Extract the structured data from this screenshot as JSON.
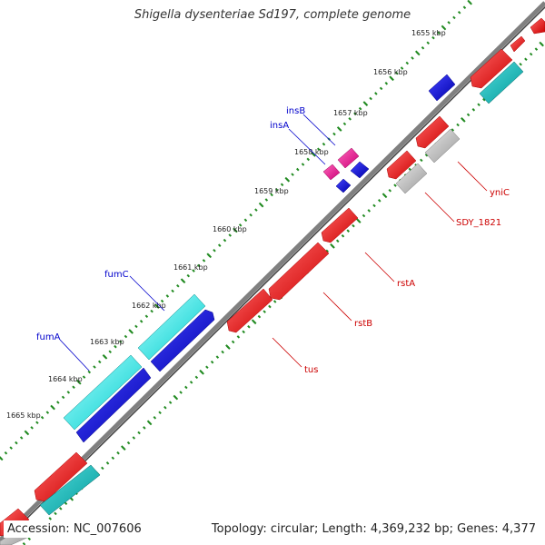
{
  "title": "Shigella dysenteriae Sd197, complete genome",
  "footer": {
    "accession": "Accession: NC_007606",
    "summary": "Topology: circular; Length: 4,369,232 bp; Genes: 4,377"
  },
  "colors": {
    "forward_red": "#ff0000",
    "forward_cyan": "#00ffff",
    "reverse_blue": "#0000ff",
    "reverse_red": "#ff0000",
    "reverse_cyan": "#00cccc",
    "gray": "#bbbbbb",
    "magenta": "#ff1493",
    "backbone": "#808080",
    "tick": "#228b22",
    "label_forward": "#0000cc",
    "label_reverse": "#cc0000"
  },
  "scale_labels": [
    "1655 kbp",
    "1656 kbp",
    "1657 kbp",
    "1658 kbp",
    "1659 kbp",
    "1660 kbp",
    "1661 kbp",
    "1662 kbp",
    "1663 kbp",
    "1664 kbp",
    "1665 kbp"
  ],
  "forward_genes": [
    "insB",
    "insA",
    "fumC",
    "fumA"
  ],
  "reverse_genes": [
    "yniC",
    "SDY_1821",
    "rstA",
    "rstB",
    "tus"
  ],
  "icon_names": {
    "gene": "arrow-feature-icon"
  }
}
